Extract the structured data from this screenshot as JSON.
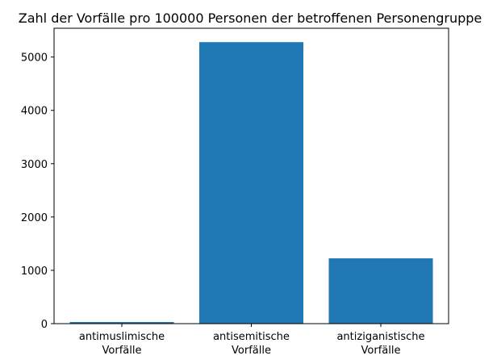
{
  "chart_data": {
    "type": "bar",
    "title": "Zahl der Vorfälle pro 100000 Personen der betroffenen Personengruppe",
    "xlabel": "",
    "ylabel": "",
    "categories": [
      [
        "antimuslimische",
        "Vorfälle"
      ],
      [
        "antisemitische",
        "Vorfälle"
      ],
      [
        "antiziganistische",
        "Vorfälle"
      ]
    ],
    "values": [
      30,
      5280,
      1225
    ],
    "ylim": [
      0,
      5540
    ],
    "yticks": [
      0,
      1000,
      2000,
      3000,
      4000,
      5000
    ],
    "bar_color": "#1f77b4",
    "grid": false,
    "legend": "none"
  }
}
